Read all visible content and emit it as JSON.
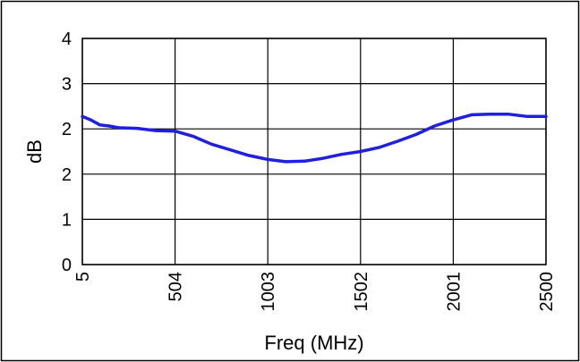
{
  "chart_data": {
    "type": "line",
    "title": "",
    "xlabel": "Freq (MHz)",
    "ylabel": "dB",
    "xlim": [
      5,
      2500
    ],
    "ylim": [
      0,
      4
    ],
    "xticks": [
      "5",
      "504",
      "1003",
      "1502",
      "2001",
      "2500"
    ],
    "yticks": [
      "0",
      "1",
      "2",
      "2",
      "3",
      "4"
    ],
    "grid": true,
    "legend": "none",
    "series": [
      {
        "color": "#1f1fdd",
        "x": [
          5,
          50,
          100,
          150,
          200,
          300,
          400,
          504,
          600,
          700,
          800,
          900,
          1003,
          1100,
          1200,
          1300,
          1400,
          1502,
          1600,
          1700,
          1800,
          1900,
          2001,
          2100,
          2200,
          2300,
          2400,
          2500
        ],
        "y": [
          2.62,
          2.56,
          2.47,
          2.45,
          2.42,
          2.41,
          2.37,
          2.36,
          2.27,
          2.13,
          2.03,
          1.93,
          1.86,
          1.82,
          1.83,
          1.88,
          1.95,
          2.0,
          2.07,
          2.18,
          2.3,
          2.45,
          2.56,
          2.65,
          2.66,
          2.66,
          2.62,
          2.62
        ]
      }
    ]
  }
}
